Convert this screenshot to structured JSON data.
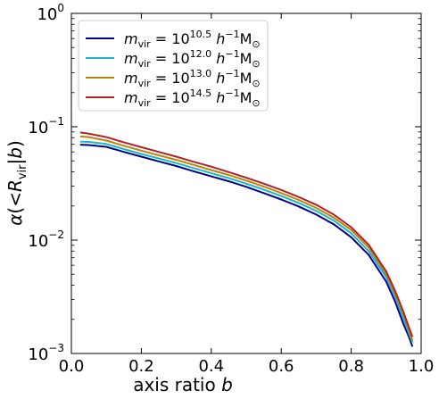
{
  "chart_data": {
    "type": "line",
    "xlabel": "axis ratio b",
    "ylabel": "α(<R_vir|b)",
    "xlim": [
      0.0,
      1.0
    ],
    "ylim": [
      0.001,
      1.0
    ],
    "yscale": "log",
    "grid": false,
    "legend_position": "top-left",
    "x_ticks": [
      {
        "value": 0.0,
        "label": "0.0"
      },
      {
        "value": 0.2,
        "label": "0.2"
      },
      {
        "value": 0.4,
        "label": "0.4"
      },
      {
        "value": 0.6,
        "label": "0.6"
      },
      {
        "value": 0.8,
        "label": "0.8"
      },
      {
        "value": 1.0,
        "label": "1.0"
      }
    ],
    "y_ticks": [
      {
        "value": 0.001,
        "mant": "10",
        "exp": "−3"
      },
      {
        "value": 0.01,
        "mant": "10",
        "exp": "−2"
      },
      {
        "value": 0.1,
        "mant": "10",
        "exp": "−1"
      },
      {
        "value": 1.0,
        "mant": "10",
        "exp": "0"
      }
    ],
    "x": [
      0.025,
      0.05,
      0.1,
      0.15,
      0.2,
      0.25,
      0.3,
      0.35,
      0.4,
      0.45,
      0.5,
      0.55,
      0.6,
      0.65,
      0.7,
      0.75,
      0.8,
      0.85,
      0.9,
      0.925,
      0.95,
      0.965,
      0.975
    ],
    "series": [
      {
        "name": "m_vir = 10^10.5 h^-1 M_sun",
        "name_parts": {
          "prefix": "m",
          "sub": "vir",
          "eq": " = 10",
          "exp": "10.5",
          "rest": " h",
          "hexp": "−1",
          "tail": "M",
          "sun": "⊙"
        },
        "color": "#00008b",
        "values": [
          0.0695,
          0.069,
          0.0665,
          0.06,
          0.0545,
          0.0495,
          0.045,
          0.0405,
          0.0365,
          0.033,
          0.0295,
          0.026,
          0.0228,
          0.0198,
          0.0168,
          0.0138,
          0.0106,
          0.0074,
          0.0043,
          0.0029,
          0.0018,
          0.0014,
          0.00115
        ]
      },
      {
        "name": "m_vir = 10^12.0 h^-1 M_sun",
        "name_parts": {
          "prefix": "m",
          "sub": "vir",
          "eq": " = 10",
          "exp": "12.0",
          "rest": " h",
          "hexp": "−1",
          "tail": "M",
          "sun": "⊙"
        },
        "color": "#1cb5d1",
        "values": [
          0.074,
          0.0735,
          0.0705,
          0.0635,
          0.0575,
          0.0525,
          0.0478,
          0.0432,
          0.039,
          0.0352,
          0.0315,
          0.0279,
          0.0245,
          0.0213,
          0.0181,
          0.0149,
          0.0115,
          0.008,
          0.0047,
          0.0032,
          0.002,
          0.0015,
          0.00125
        ]
      },
      {
        "name": "m_vir = 10^13.0 h^-1 M_sun",
        "name_parts": {
          "prefix": "m",
          "sub": "vir",
          "eq": " = 10",
          "exp": "13.0",
          "rest": " h",
          "hexp": "−1",
          "tail": "M",
          "sun": "⊙"
        },
        "color": "#b8860b",
        "values": [
          0.082,
          0.081,
          0.0755,
          0.068,
          0.0615,
          0.056,
          0.051,
          0.046,
          0.0415,
          0.0375,
          0.0335,
          0.0297,
          0.026,
          0.0226,
          0.0192,
          0.0158,
          0.0123,
          0.0086,
          0.005,
          0.0034,
          0.0022,
          0.0016,
          0.0013
        ]
      },
      {
        "name": "m_vir = 10^14.5 h^-1 M_sun",
        "name_parts": {
          "prefix": "m",
          "sub": "vir",
          "eq": " = 10",
          "exp": "14.5",
          "rest": " h",
          "hexp": "−1",
          "tail": "M",
          "sun": "⊙"
        },
        "color": "#b22222",
        "values": [
          0.089,
          0.087,
          0.081,
          0.073,
          0.066,
          0.06,
          0.0545,
          0.049,
          0.0445,
          0.0398,
          0.0355,
          0.0315,
          0.0277,
          0.024,
          0.0205,
          0.0168,
          0.013,
          0.0091,
          0.0053,
          0.0036,
          0.0023,
          0.0017,
          0.0014
        ]
      }
    ]
  }
}
